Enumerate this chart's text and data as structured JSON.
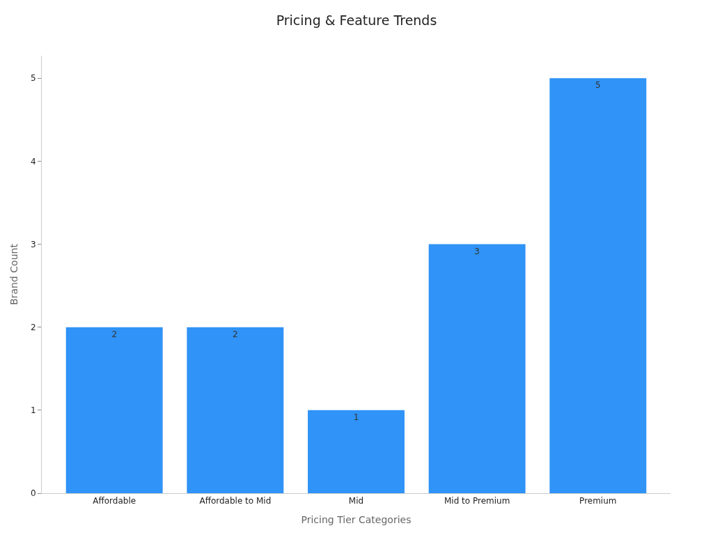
{
  "chart_data": {
    "type": "bar",
    "title": "Pricing & Feature Trends",
    "xlabel": "Pricing Tier Categories",
    "ylabel": "Brand Count",
    "categories": [
      "Affordable",
      "Affordable to Mid",
      "Mid",
      "Mid to Premium",
      "Premium"
    ],
    "values": [
      2,
      2,
      1,
      3,
      5
    ],
    "color": "#2f93f7",
    "ylim": [
      0,
      5.27
    ],
    "yticks": [
      0,
      1,
      2,
      3,
      4,
      5
    ],
    "data_labels": true
  }
}
